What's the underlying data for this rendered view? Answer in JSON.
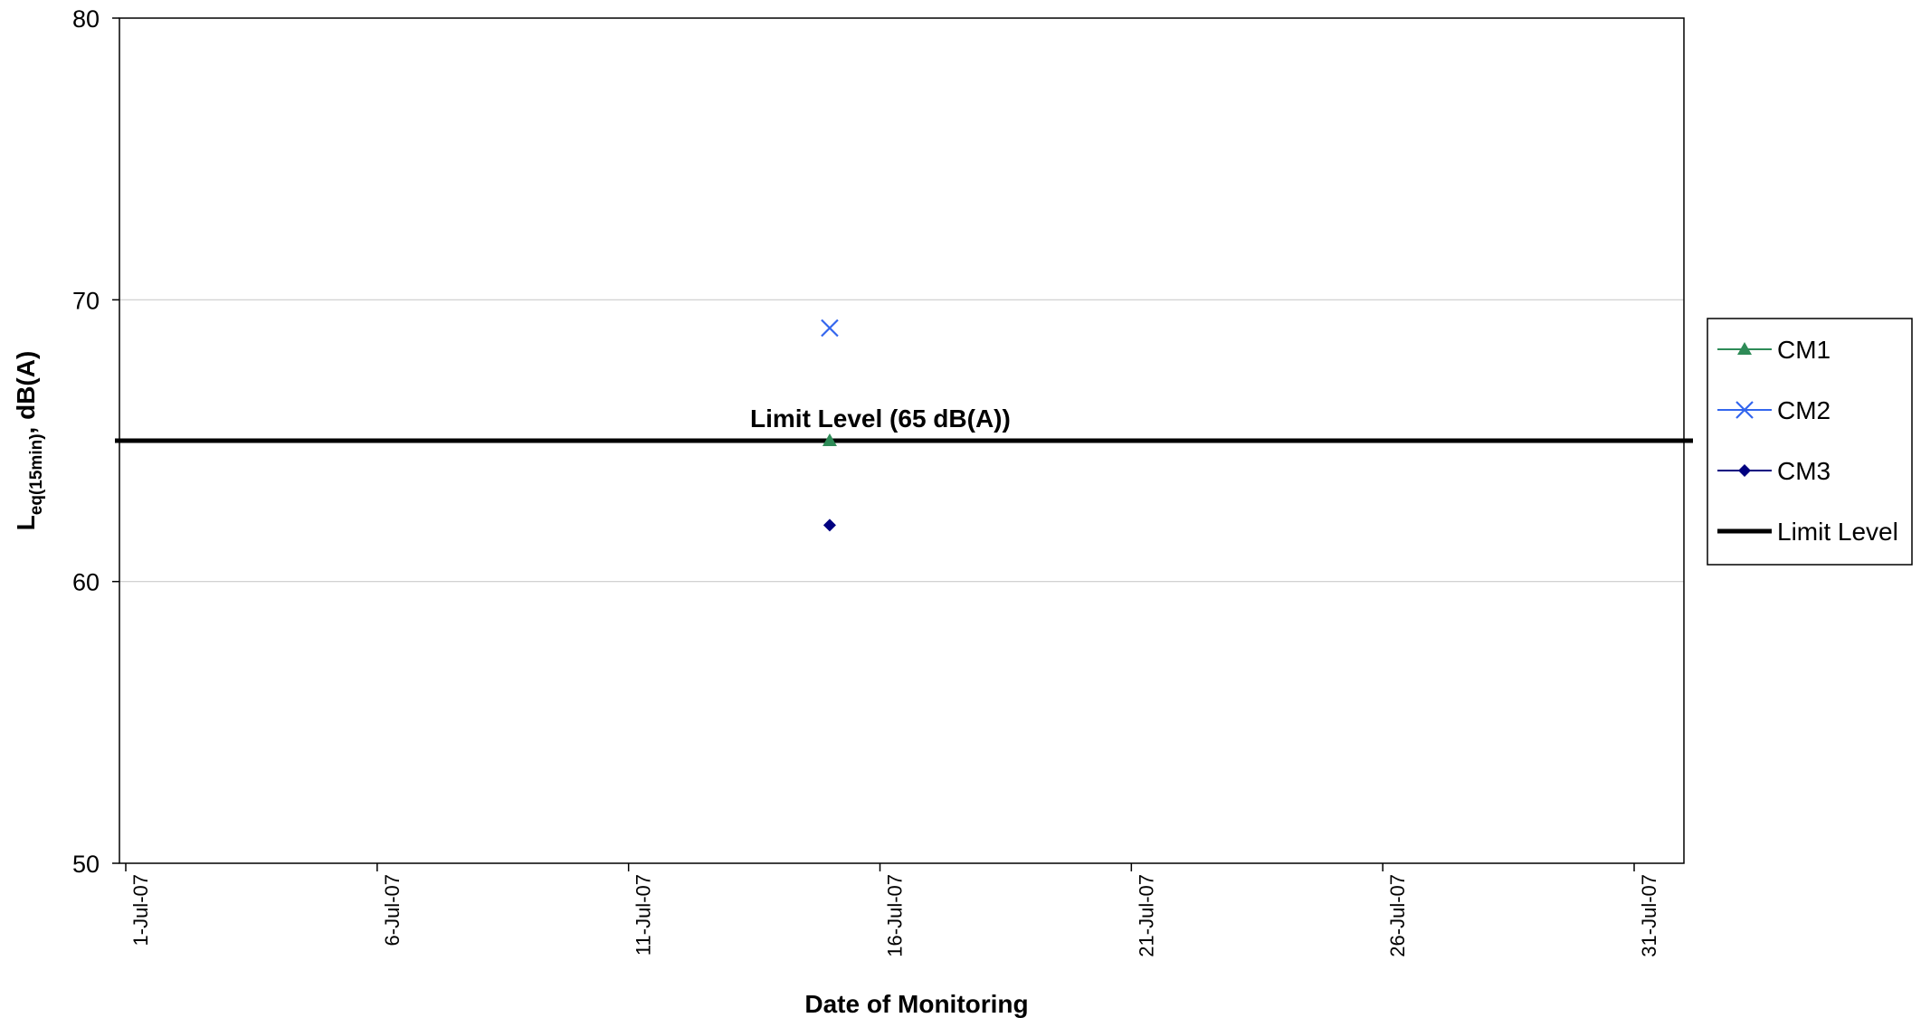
{
  "chart_data": {
    "type": "scatter",
    "xlabel": "Date of Monitoring",
    "ylabel_main": "L",
    "ylabel_sub": "eq(15min)",
    "ylabel_rest": ", dB(A)",
    "ylim": [
      50,
      80
    ],
    "yticks": [
      50,
      60,
      70,
      80
    ],
    "xlim": [
      "2007-07-01",
      "2007-07-31"
    ],
    "xticks": [
      "1-Jul-07",
      "6-Jul-07",
      "11-Jul-07",
      "16-Jul-07",
      "21-Jul-07",
      "26-Jul-07",
      "31-Jul-07"
    ],
    "grid": true,
    "legend_position": "right",
    "series": [
      {
        "name": "CM1",
        "marker": "triangle",
        "color": "#2e8b57",
        "points": [
          {
            "x": "2007-07-15",
            "y": 65
          }
        ]
      },
      {
        "name": "CM2",
        "marker": "x",
        "color": "#3366ee",
        "points": [
          {
            "x": "2007-07-15",
            "y": 69
          }
        ]
      },
      {
        "name": "CM3",
        "marker": "diamond",
        "color": "#000080",
        "points": [
          {
            "x": "2007-07-15",
            "y": 62
          }
        ]
      }
    ],
    "limit_line": {
      "name": "Limit Level",
      "value": 65,
      "color": "#000000"
    },
    "annotation": "Limit Level (65 dB(A))"
  }
}
